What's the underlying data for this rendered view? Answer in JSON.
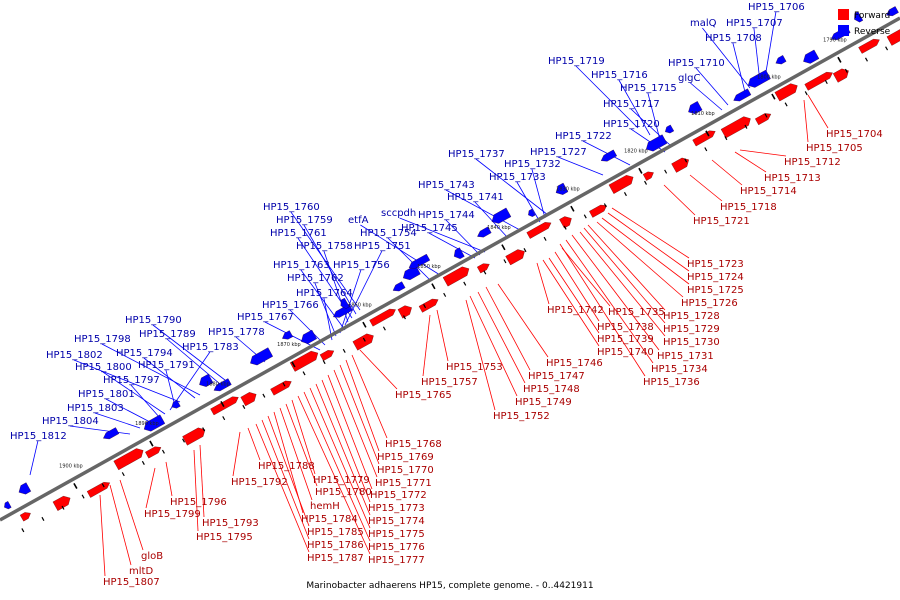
{
  "title": "Marinobacter adhaerens HP15, complete genome. - 0..4421911",
  "legend": [
    {
      "label": "Forward",
      "color": "#ff0000"
    },
    {
      "label": "Reverse",
      "color": "#0000ff"
    }
  ],
  "colors": {
    "forward": "#ff0000",
    "reverse": "#0000ff",
    "backbone": "#666666"
  },
  "ticks": [
    "1900 kbp",
    "1890 kbp",
    "1880 kbp",
    "1870 kbp",
    "1860 kbp",
    "1850 kbp",
    "1840 kbp",
    "1830 kbp",
    "1820 kbp",
    "1810 kbp",
    "1800 kbp",
    "1790 kbp"
  ],
  "forward_genes": [
    "HP15_1704",
    "HP15_1705",
    "HP15_1712",
    "HP15_1713",
    "HP15_1714",
    "HP15_1718",
    "HP15_1721",
    "HP15_1723",
    "HP15_1724",
    "HP15_1725",
    "HP15_1726",
    "HP15_1728",
    "HP15_1729",
    "HP15_1730",
    "HP15_1731",
    "HP15_1734",
    "HP15_1736",
    "HP15_1735",
    "HP15_1738",
    "HP15_1739",
    "HP15_1740",
    "HP15_1742",
    "HP15_1746",
    "HP15_1747",
    "HP15_1748",
    "HP15_1749",
    "HP15_1752",
    "HP15_1753",
    "HP15_1757",
    "HP15_1765",
    "HP15_1768",
    "HP15_1769",
    "HP15_1770",
    "HP15_1771",
    "HP15_1772",
    "HP15_1773",
    "HP15_1774",
    "HP15_1775",
    "HP15_1776",
    "HP15_1777",
    "HP15_1779",
    "HP15_1780",
    "hemH",
    "HP15_1784",
    "HP15_1785",
    "HP15_1786",
    "HP15_1787",
    "HP15_1788",
    "HP15_1792",
    "HP15_1793",
    "HP15_1795",
    "HP15_1796",
    "HP15_1799",
    "gloB",
    "mltD",
    "HP15_1807"
  ],
  "reverse_genes": [
    "HP15_1706",
    "HP15_1707",
    "malQ",
    "HP15_1708",
    "HP15_1710",
    "glgC",
    "HP15_1719",
    "HP15_1716",
    "HP15_1715",
    "HP15_1717",
    "HP15_1720",
    "HP15_1722",
    "HP15_1727",
    "HP15_1737",
    "HP15_1732",
    "HP15_1733",
    "HP15_1743",
    "HP15_1741",
    "sccpdh",
    "HP15_1744",
    "HP15_1745",
    "etfA",
    "HP15_1754",
    "HP15_1760",
    "HP15_1759",
    "HP15_1761",
    "HP15_1758",
    "HP15_1751",
    "HP15_1763",
    "HP15_1756",
    "HP15_1762",
    "HP15_1764",
    "HP15_1766",
    "HP15_1767",
    "HP15_1778",
    "HP15_1790",
    "HP15_1789",
    "HP15_1798",
    "HP15_1794",
    "HP15_1802",
    "HP15_1791",
    "HP15_1783",
    "HP15_1800",
    "HP15_1797",
    "HP15_1801",
    "HP15_1803",
    "HP15_1804",
    "HP15_1812"
  ]
}
